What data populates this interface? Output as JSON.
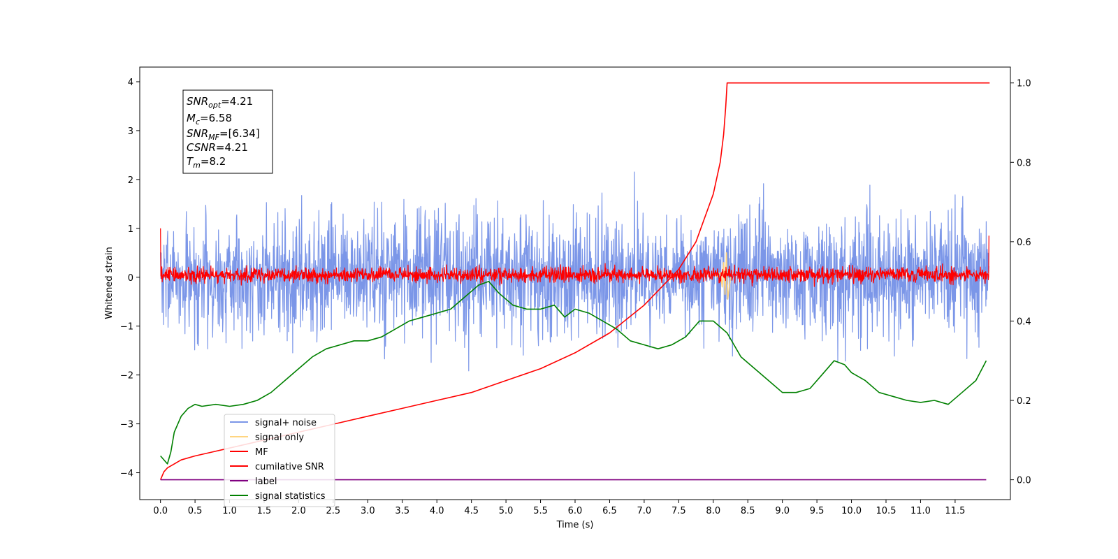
{
  "chart_data": {
    "type": "line",
    "xlabel": "Time (s)",
    "ylabel": "Whitened strain",
    "xlim": [
      -0.3,
      12.3
    ],
    "ylim": [
      -4.55,
      4.3
    ],
    "ylim_right": [
      -0.05,
      1.04
    ],
    "x_ticks": [
      "0.0",
      "0.5",
      "1.0",
      "1.5",
      "2.0",
      "2.5",
      "3.0",
      "3.5",
      "4.0",
      "4.5",
      "5.0",
      "5.5",
      "6.0",
      "6.5",
      "7.0",
      "7.5",
      "8.0",
      "8.5",
      "9.0",
      "9.5",
      "10.0",
      "10.5",
      "11.0",
      "11.5"
    ],
    "y_ticks": [
      "4",
      "3",
      "2",
      "1",
      "0",
      "−1",
      "−2",
      "−3",
      "−4"
    ],
    "y_right_ticks": [
      "1.0",
      "0.8",
      "0.6",
      "0.4",
      "0.2",
      "0.0"
    ],
    "info_box": {
      "snr_opt": {
        "base": "SNR",
        "sub": "opt",
        "value": "=4.21"
      },
      "mc": {
        "base": "M",
        "sub": "c",
        "value": "=6.58"
      },
      "snr_mf": {
        "base": "SNR",
        "sub": "MF",
        "value": "=[6.34]"
      },
      "csnr": {
        "base": "CSNR",
        "value": "=4.21"
      },
      "tm": {
        "base": "T",
        "sub": "m",
        "value": "=8.2"
      }
    },
    "legend": {
      "placement": "lower-left",
      "entries": [
        {
          "label": "signal+ noise",
          "color": "#7b96e8"
        },
        {
          "label": "signal only",
          "color": "#ffd580"
        },
        {
          "label": "MF",
          "color": "#ff0000"
        },
        {
          "label": "cumilative SNR",
          "color": "#ff0000"
        },
        {
          "label": "label",
          "color": "#800080"
        },
        {
          "label": "signal statistics",
          "color": "#008000"
        }
      ]
    },
    "series": [
      {
        "name": "signal+ noise",
        "axis": "left",
        "style": "noise",
        "color": "#7b96e8",
        "x_range": [
          0,
          11.99
        ],
        "center": 0.0,
        "amplitude": 1.2,
        "peak_range": [
          -3.7,
          3.9
        ],
        "seed": 7
      },
      {
        "name": "signal only",
        "axis": "left",
        "color": "#ffd580",
        "x": [
          8.05,
          8.1,
          8.13,
          8.15,
          8.17,
          8.19,
          8.21,
          8.25
        ],
        "y": [
          0.0,
          0.1,
          -0.2,
          0.3,
          -0.35,
          0.5,
          -0.45,
          0.0
        ]
      },
      {
        "name": "MF",
        "axis": "left",
        "style": "noise",
        "color": "#ff0000",
        "x_range": [
          0,
          11.99
        ],
        "center": 0.05,
        "amplitude": 0.15,
        "peak_range": [
          -0.25,
          0.6
        ],
        "seed": 3,
        "start": 1.0,
        "end": 0.85
      },
      {
        "name": "cumilative SNR",
        "axis": "right",
        "color": "#ff0000",
        "x": [
          0.0,
          0.05,
          0.1,
          0.2,
          0.3,
          0.5,
          0.75,
          1.0,
          1.5,
          2.0,
          2.5,
          3.0,
          3.5,
          4.0,
          4.5,
          5.0,
          5.5,
          6.0,
          6.5,
          7.0,
          7.5,
          7.75,
          8.0,
          8.1,
          8.15,
          8.18,
          8.2,
          12.0
        ],
        "y": [
          0.0,
          0.02,
          0.03,
          0.04,
          0.05,
          0.06,
          0.07,
          0.08,
          0.1,
          0.12,
          0.14,
          0.16,
          0.18,
          0.2,
          0.22,
          0.25,
          0.28,
          0.32,
          0.37,
          0.44,
          0.53,
          0.6,
          0.72,
          0.8,
          0.87,
          0.94,
          1.0,
          1.0
        ]
      },
      {
        "name": "label",
        "axis": "right",
        "color": "#800080",
        "x": [
          0,
          11.95
        ],
        "y": [
          0,
          0
        ]
      },
      {
        "name": "signal statistics",
        "axis": "right",
        "color": "#008000",
        "x": [
          0.0,
          0.1,
          0.15,
          0.2,
          0.3,
          0.4,
          0.5,
          0.6,
          0.8,
          1.0,
          1.2,
          1.4,
          1.6,
          1.8,
          2.0,
          2.2,
          2.4,
          2.6,
          2.8,
          3.0,
          3.2,
          3.4,
          3.6,
          3.8,
          4.0,
          4.2,
          4.4,
          4.6,
          4.75,
          4.9,
          5.1,
          5.3,
          5.5,
          5.7,
          5.85,
          6.0,
          6.2,
          6.4,
          6.6,
          6.8,
          7.0,
          7.2,
          7.4,
          7.6,
          7.8,
          8.0,
          8.2,
          8.4,
          8.6,
          8.8,
          9.0,
          9.2,
          9.4,
          9.6,
          9.75,
          9.9,
          10.0,
          10.2,
          10.4,
          10.6,
          10.8,
          11.0,
          11.2,
          11.4,
          11.6,
          11.8,
          11.95
        ],
        "y": [
          0.06,
          0.04,
          0.07,
          0.12,
          0.16,
          0.18,
          0.19,
          0.185,
          0.19,
          0.185,
          0.19,
          0.2,
          0.22,
          0.25,
          0.28,
          0.31,
          0.33,
          0.34,
          0.35,
          0.35,
          0.36,
          0.38,
          0.4,
          0.41,
          0.42,
          0.43,
          0.46,
          0.49,
          0.5,
          0.47,
          0.44,
          0.43,
          0.43,
          0.44,
          0.41,
          0.43,
          0.42,
          0.4,
          0.38,
          0.35,
          0.34,
          0.33,
          0.34,
          0.36,
          0.4,
          0.4,
          0.37,
          0.31,
          0.28,
          0.25,
          0.22,
          0.22,
          0.23,
          0.27,
          0.3,
          0.29,
          0.27,
          0.25,
          0.22,
          0.21,
          0.2,
          0.195,
          0.2,
          0.19,
          0.22,
          0.25,
          0.3
        ]
      }
    ]
  }
}
